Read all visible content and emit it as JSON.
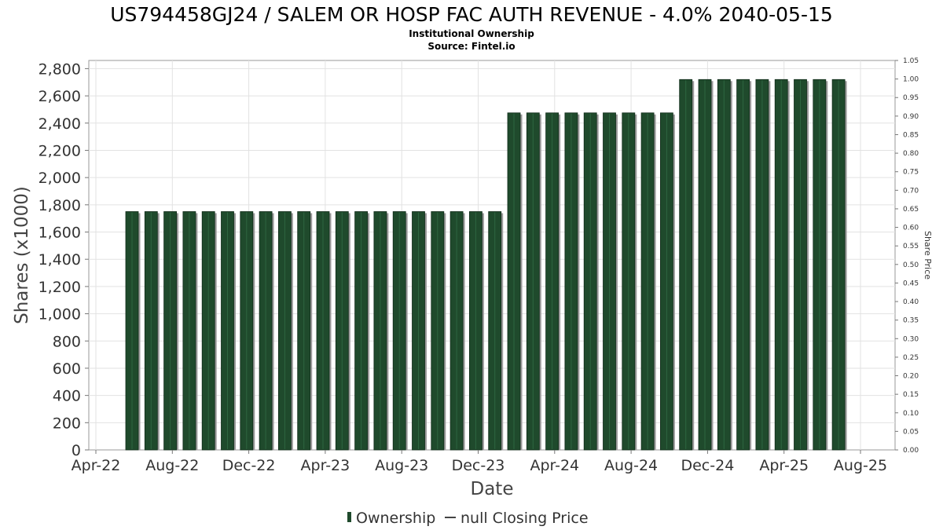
{
  "chart_data": {
    "type": "bar",
    "title": "US794458GJ24 / SALEM OR HOSP FAC AUTH REVENUE - 4.0% 2040-05-15",
    "subtitle": "Institutional Ownership",
    "source": "Source: Fintel.io",
    "xlabel": "Date",
    "ylabel": "Shares (x1000)",
    "y2label": "Share Price",
    "x_tick_labels": [
      "Apr-22",
      "Aug-22",
      "Dec-22",
      "Apr-23",
      "Aug-23",
      "Dec-23",
      "Apr-24",
      "Aug-24",
      "Dec-24",
      "Apr-25",
      "Aug-25"
    ],
    "y_tick_labels": [
      "0",
      "200",
      "400",
      "600",
      "800",
      "1,000",
      "1,200",
      "1,400",
      "1,600",
      "1,800",
      "2,000",
      "2,200",
      "2,400",
      "2,600",
      "2,800"
    ],
    "y2_tick_labels": [
      "0.00",
      "0.05",
      "0.10",
      "0.15",
      "0.20",
      "0.25",
      "0.30",
      "0.35",
      "0.40",
      "0.45",
      "0.50",
      "0.55",
      "0.60",
      "0.65",
      "0.70",
      "0.75",
      "0.80",
      "0.85",
      "0.90",
      "0.95",
      "1.00",
      "1.05"
    ],
    "ylim": [
      0,
      2860
    ],
    "y2lim": [
      0,
      1.05
    ],
    "grid": true,
    "legend_position": "bottom-center",
    "legend": [
      {
        "label": "Ownership",
        "kind": "bar",
        "color": "#1f4a2c"
      },
      {
        "label": "null Closing Price",
        "kind": "line",
        "color": "#444444"
      }
    ],
    "series": [
      {
        "name": "Ownership",
        "color": "#1f4a2c",
        "values": [
          1750,
          1750,
          1750,
          1750,
          1750,
          1750,
          1750,
          1750,
          1750,
          1750,
          1750,
          1750,
          1750,
          1750,
          1750,
          1750,
          1750,
          1750,
          1750,
          1750,
          2475,
          2475,
          2475,
          2475,
          2475,
          2475,
          2475,
          2475,
          2475,
          2720,
          2720,
          2720,
          2720,
          2720,
          2720,
          2720,
          2720,
          2720
        ]
      }
    ]
  }
}
